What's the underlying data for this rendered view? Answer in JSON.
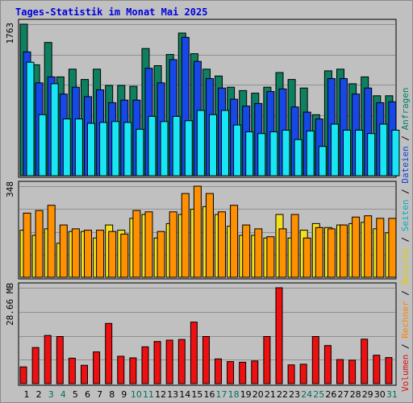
{
  "title": "Tages-Statistik im Monat Mai 2025",
  "chart_data": [
    {
      "type": "bar",
      "panel": "traffic",
      "categories": [
        "1",
        "2",
        "3",
        "4",
        "5",
        "6",
        "7",
        "8",
        "9",
        "10",
        "11",
        "12",
        "13",
        "14",
        "15",
        "16",
        "17",
        "18",
        "19",
        "20",
        "21",
        "22",
        "23",
        "24",
        "25",
        "26",
        "27",
        "28",
        "29",
        "30",
        "31"
      ],
      "y_max_label": "1763",
      "ylim": [
        0,
        1763
      ],
      "grid": true,
      "series": [
        {
          "name": "Anfragen",
          "color": "#0e8060",
          "values": [
            1763,
            1290,
            1550,
            1150,
            1240,
            1120,
            1240,
            1050,
            1050,
            1040,
            1480,
            1280,
            1410,
            1660,
            1420,
            1240,
            1160,
            1030,
            990,
            960,
            1030,
            1200,
            1120,
            1020,
            710,
            1220,
            1240,
            1070,
            1150,
            930,
            930
          ]
        },
        {
          "name": "Dateien",
          "color": "#1648e8",
          "values": [
            1440,
            1080,
            1150,
            950,
            1030,
            920,
            1000,
            850,
            880,
            880,
            1250,
            1080,
            1350,
            1610,
            1330,
            1130,
            1020,
            890,
            810,
            840,
            980,
            1010,
            800,
            740,
            660,
            1130,
            1130,
            950,
            1020,
            850,
            860
          ]
        },
        {
          "name": "Seiten",
          "color": "#19e6f4",
          "values": [
            1320,
            710,
            1070,
            660,
            660,
            610,
            620,
            630,
            620,
            540,
            690,
            630,
            690,
            640,
            760,
            710,
            760,
            590,
            510,
            490,
            510,
            530,
            420,
            520,
            340,
            600,
            530,
            530,
            490,
            600,
            530
          ]
        }
      ]
    },
    {
      "type": "bar",
      "panel": "visits",
      "categories": [
        "1",
        "2",
        "3",
        "4",
        "5",
        "6",
        "7",
        "8",
        "9",
        "10",
        "11",
        "12",
        "13",
        "14",
        "15",
        "16",
        "17",
        "18",
        "19",
        "20",
        "21",
        "22",
        "23",
        "24",
        "25",
        "26",
        "27",
        "28",
        "29",
        "30",
        "31"
      ],
      "y_max_label": "348",
      "ylim": [
        0,
        348
      ],
      "grid": true,
      "series": [
        {
          "name": "Besuche",
          "color": "#f0e020",
          "values": [
            180,
            160,
            185,
            130,
            175,
            175,
            150,
            200,
            180,
            225,
            240,
            150,
            205,
            240,
            260,
            270,
            240,
            195,
            160,
            160,
            150,
            240,
            150,
            180,
            205,
            190,
            200,
            205,
            210,
            185,
            170
          ]
        },
        {
          "name": "Rechner",
          "color": "#ff9000",
          "values": [
            245,
            255,
            275,
            200,
            185,
            180,
            180,
            175,
            165,
            255,
            250,
            175,
            250,
            320,
            348,
            320,
            250,
            275,
            200,
            185,
            155,
            185,
            240,
            150,
            190,
            185,
            200,
            230,
            235,
            225,
            225
          ]
        }
      ]
    },
    {
      "type": "bar",
      "panel": "volume",
      "categories": [
        "1",
        "2",
        "3",
        "4",
        "5",
        "6",
        "7",
        "8",
        "9",
        "10",
        "11",
        "12",
        "13",
        "14",
        "15",
        "16",
        "17",
        "18",
        "19",
        "20",
        "21",
        "22",
        "23",
        "24",
        "25",
        "26",
        "27",
        "28",
        "29",
        "30",
        "31"
      ],
      "y_max_label": "28.66 MB",
      "ylim": [
        0,
        28.66
      ],
      "grid": true,
      "series": [
        {
          "name": "Volumen",
          "color": "#ee1010",
          "values": [
            5.0,
            10.8,
            14.4,
            14.1,
            7.6,
            5.5,
            9.5,
            18.0,
            8.2,
            7.7,
            11.0,
            12.6,
            13.0,
            13.2,
            18.4,
            14.1,
            7.4,
            6.6,
            6.4,
            6.8,
            14.1,
            28.66,
            5.6,
            5.8,
            14.1,
            11.4,
            7.2,
            7.0,
            13.3,
            8.5,
            7.8
          ]
        }
      ]
    }
  ],
  "x_label_colors": {
    "weekday": "#000000",
    "weekend": "#007060",
    "weekend_days": [
      3,
      4,
      10,
      11,
      17,
      18,
      24,
      25,
      31
    ]
  },
  "legend_right": [
    {
      "text": "Volumen",
      "color": "#e01010"
    },
    {
      "text": "Rechner",
      "color": "#ff8000"
    },
    {
      "text": "Besuche",
      "color": "#e0d000"
    },
    {
      "text": "Seiten",
      "color": "#00b0c0"
    },
    {
      "text": "Dateien",
      "color": "#1040e0"
    },
    {
      "text": "Anfragen",
      "color": "#008060"
    }
  ],
  "legend_separator": " / ",
  "colors": {
    "background": "#c0c0c0",
    "grid": "#909090",
    "frame": "#8a8a8a"
  }
}
